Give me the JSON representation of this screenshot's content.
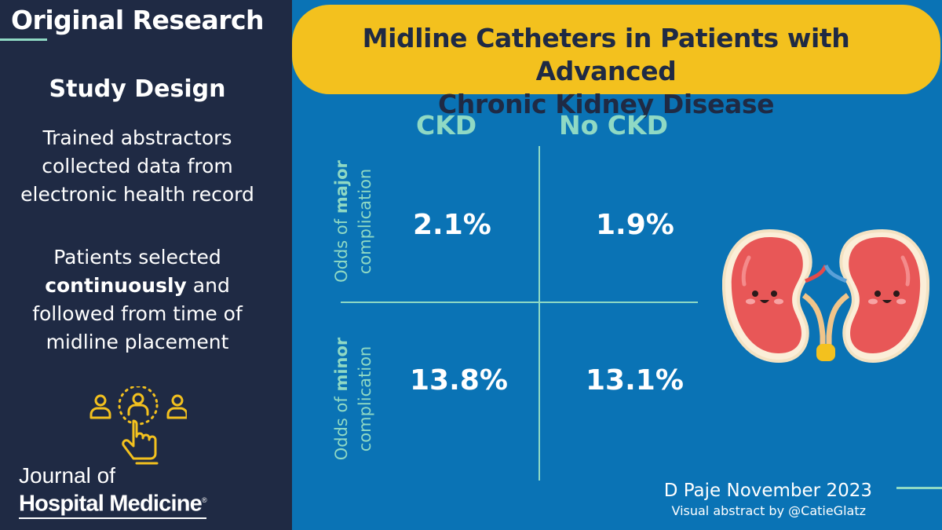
{
  "left_panel": {
    "header": "Original Research",
    "study_heading": "Study Design",
    "paragraph1": [
      "Trained abstractors",
      "collected data from",
      "electronic health record"
    ],
    "paragraph2": {
      "line1": "Patients selected",
      "line2_bold": "continuously",
      "line2_rest": " and",
      "line3": "followed from time of",
      "line4": "midline placement"
    },
    "icon": "people-selection-hand-icon",
    "journal": {
      "line1": "Journal of",
      "line2": "Hospital Medicine",
      "mark": "®"
    }
  },
  "right_panel": {
    "title_line1": "Midline Catheters in Patients with Advanced",
    "title_line2": "Chronic Kidney Disease",
    "columns": [
      "CKD",
      "No CKD"
    ],
    "rows": [
      {
        "label_pre": "Odds of ",
        "label_bold": "major",
        "label_line2": "complication",
        "values": [
          "2.1%",
          "1.9%"
        ]
      },
      {
        "label_pre": "Odds of ",
        "label_bold": "minor",
        "label_line2": "complication",
        "values": [
          "13.8%",
          "13.1%"
        ]
      }
    ],
    "illustration": "kidney-icon",
    "credit_line1": "D Paje November 2023",
    "credit_line2": "Visual abstract by @CatieGlatz"
  },
  "colors": {
    "navy": "#1f2a44",
    "blue": "#0a73b5",
    "yellow": "#f3c11e",
    "mint": "#8fd9c4",
    "icon_gold": "#f3c11e"
  }
}
